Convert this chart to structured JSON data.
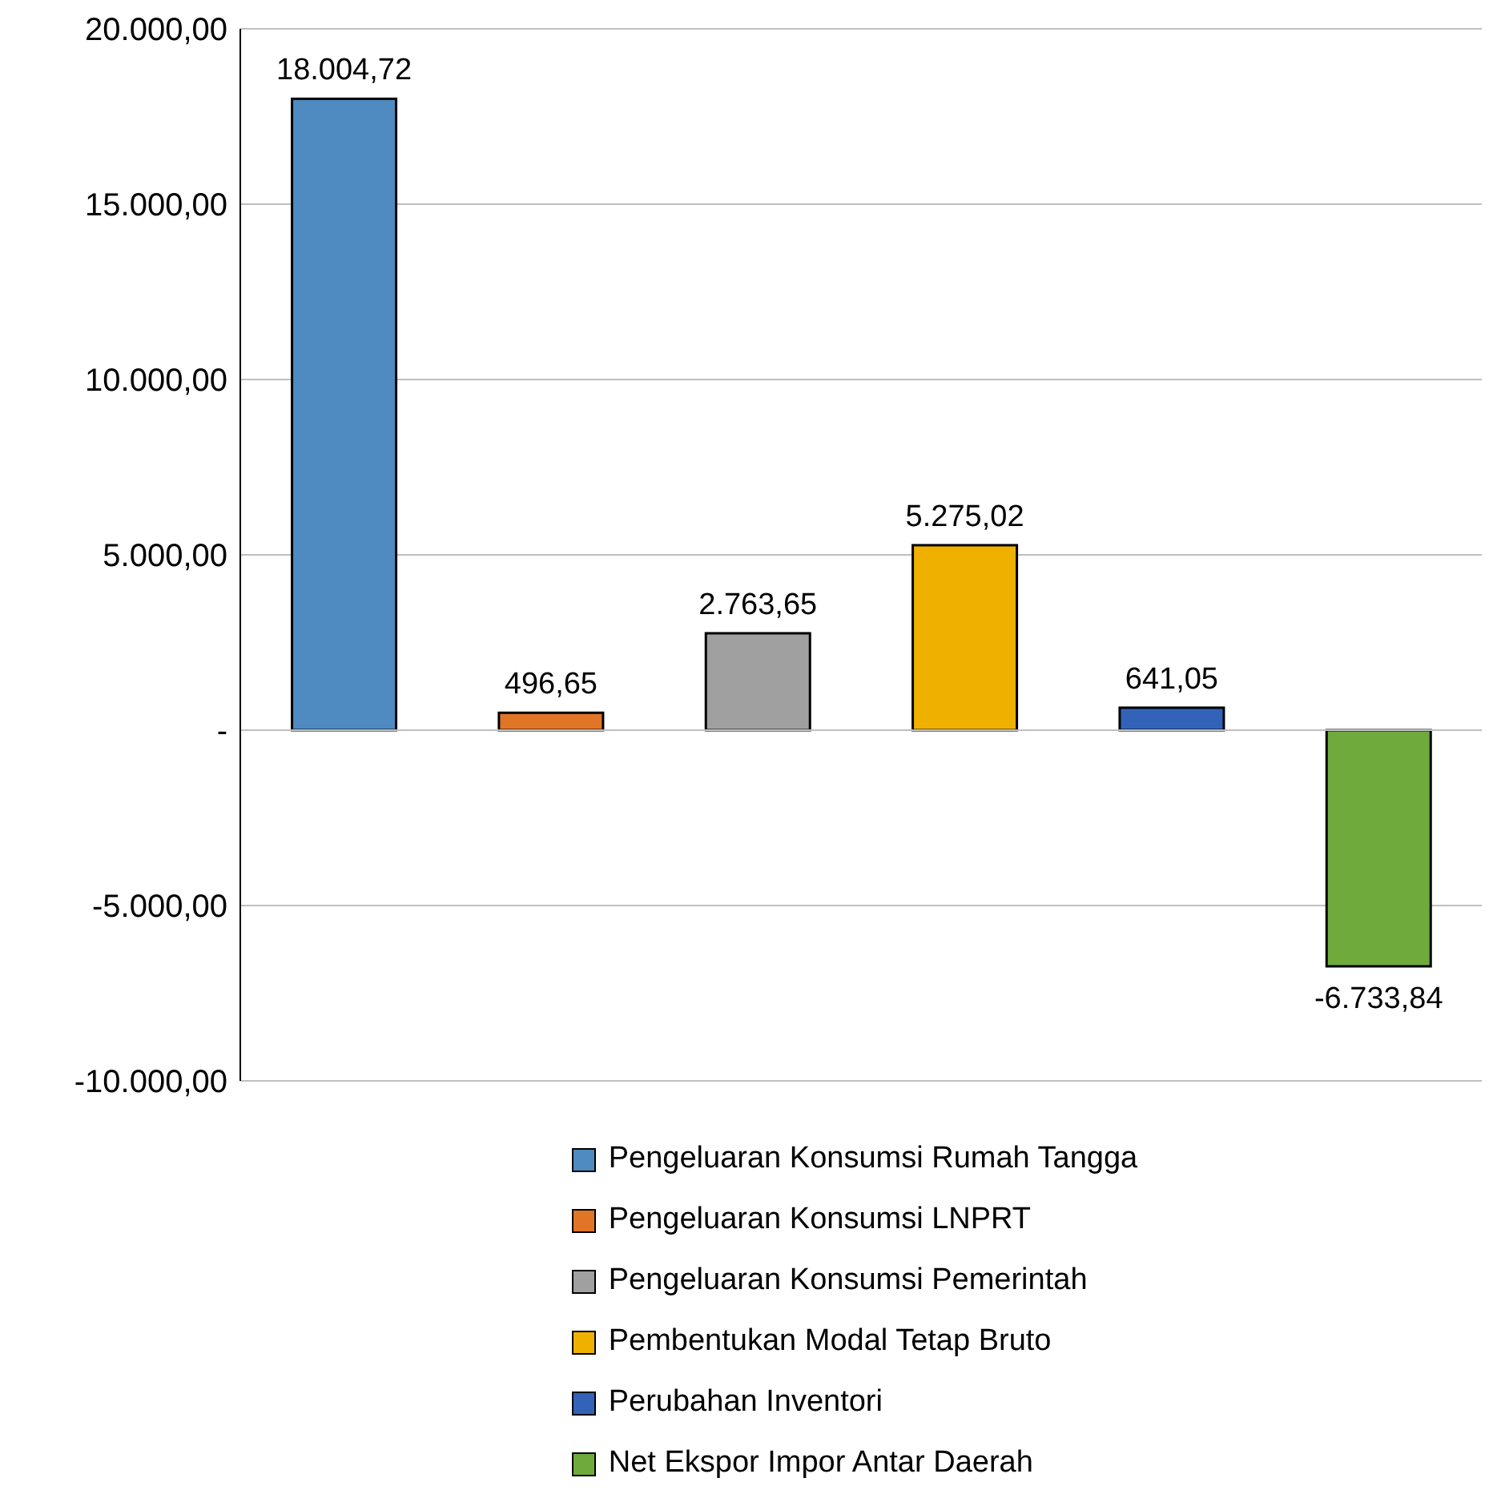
{
  "chart_data": {
    "type": "bar",
    "stacked": true,
    "categories": [
      null,
      null,
      null,
      null,
      null,
      null
    ],
    "series": [
      {
        "name": "Pengeluaran Konsumsi Rumah Tangga",
        "color": "#4f8bc1",
        "values": [
          18004.72,
          null,
          null,
          null,
          null,
          null
        ],
        "value_labels": [
          "18.004,72",
          null,
          null,
          null,
          null,
          null
        ]
      },
      {
        "name": "Pengeluaran Konsumsi LNPRT",
        "color": "#e07527",
        "values": [
          null,
          496.65,
          null,
          null,
          null,
          null
        ],
        "value_labels": [
          null,
          "496,65",
          null,
          null,
          null,
          null
        ]
      },
      {
        "name": "Pengeluaran Konsumsi Pemerintah",
        "color": "#a0a0a0",
        "values": [
          null,
          null,
          2763.65,
          null,
          null,
          null
        ],
        "value_labels": [
          null,
          null,
          "2.763,65",
          null,
          null,
          null
        ]
      },
      {
        "name": "Pembentukan Modal Tetap Bruto",
        "color": "#f0b000",
        "values": [
          null,
          null,
          null,
          5275.02,
          null,
          null
        ],
        "value_labels": [
          null,
          null,
          null,
          "5.275,02",
          null,
          null
        ]
      },
      {
        "name": "Perubahan Inventori",
        "color": "#3263b8",
        "values": [
          null,
          null,
          null,
          null,
          641.05,
          null
        ],
        "value_labels": [
          null,
          null,
          null,
          null,
          "641,05",
          null
        ]
      },
      {
        "name": "Net Ekspor Impor Antar Daerah",
        "color": "#6fab3c",
        "values": [
          null,
          null,
          null,
          null,
          null,
          -6733.84
        ],
        "value_labels": [
          null,
          null,
          null,
          null,
          null,
          "-6.733,84"
        ]
      }
    ],
    "ylim": [
      -10000,
      20000
    ],
    "yticks": [
      {
        "value": -10000,
        "label": "-10.000,00"
      },
      {
        "value": -5000,
        "label": "-5.000,00"
      },
      {
        "value": 0,
        "label": "-"
      },
      {
        "value": 5000,
        "label": "5.000,00"
      },
      {
        "value": 10000,
        "label": "10.000,00"
      },
      {
        "value": 15000,
        "label": "15.000,00"
      },
      {
        "value": 20000,
        "label": "20.000,00"
      }
    ],
    "grid": "y",
    "legend": "bottom",
    "tick_labels": "y"
  }
}
